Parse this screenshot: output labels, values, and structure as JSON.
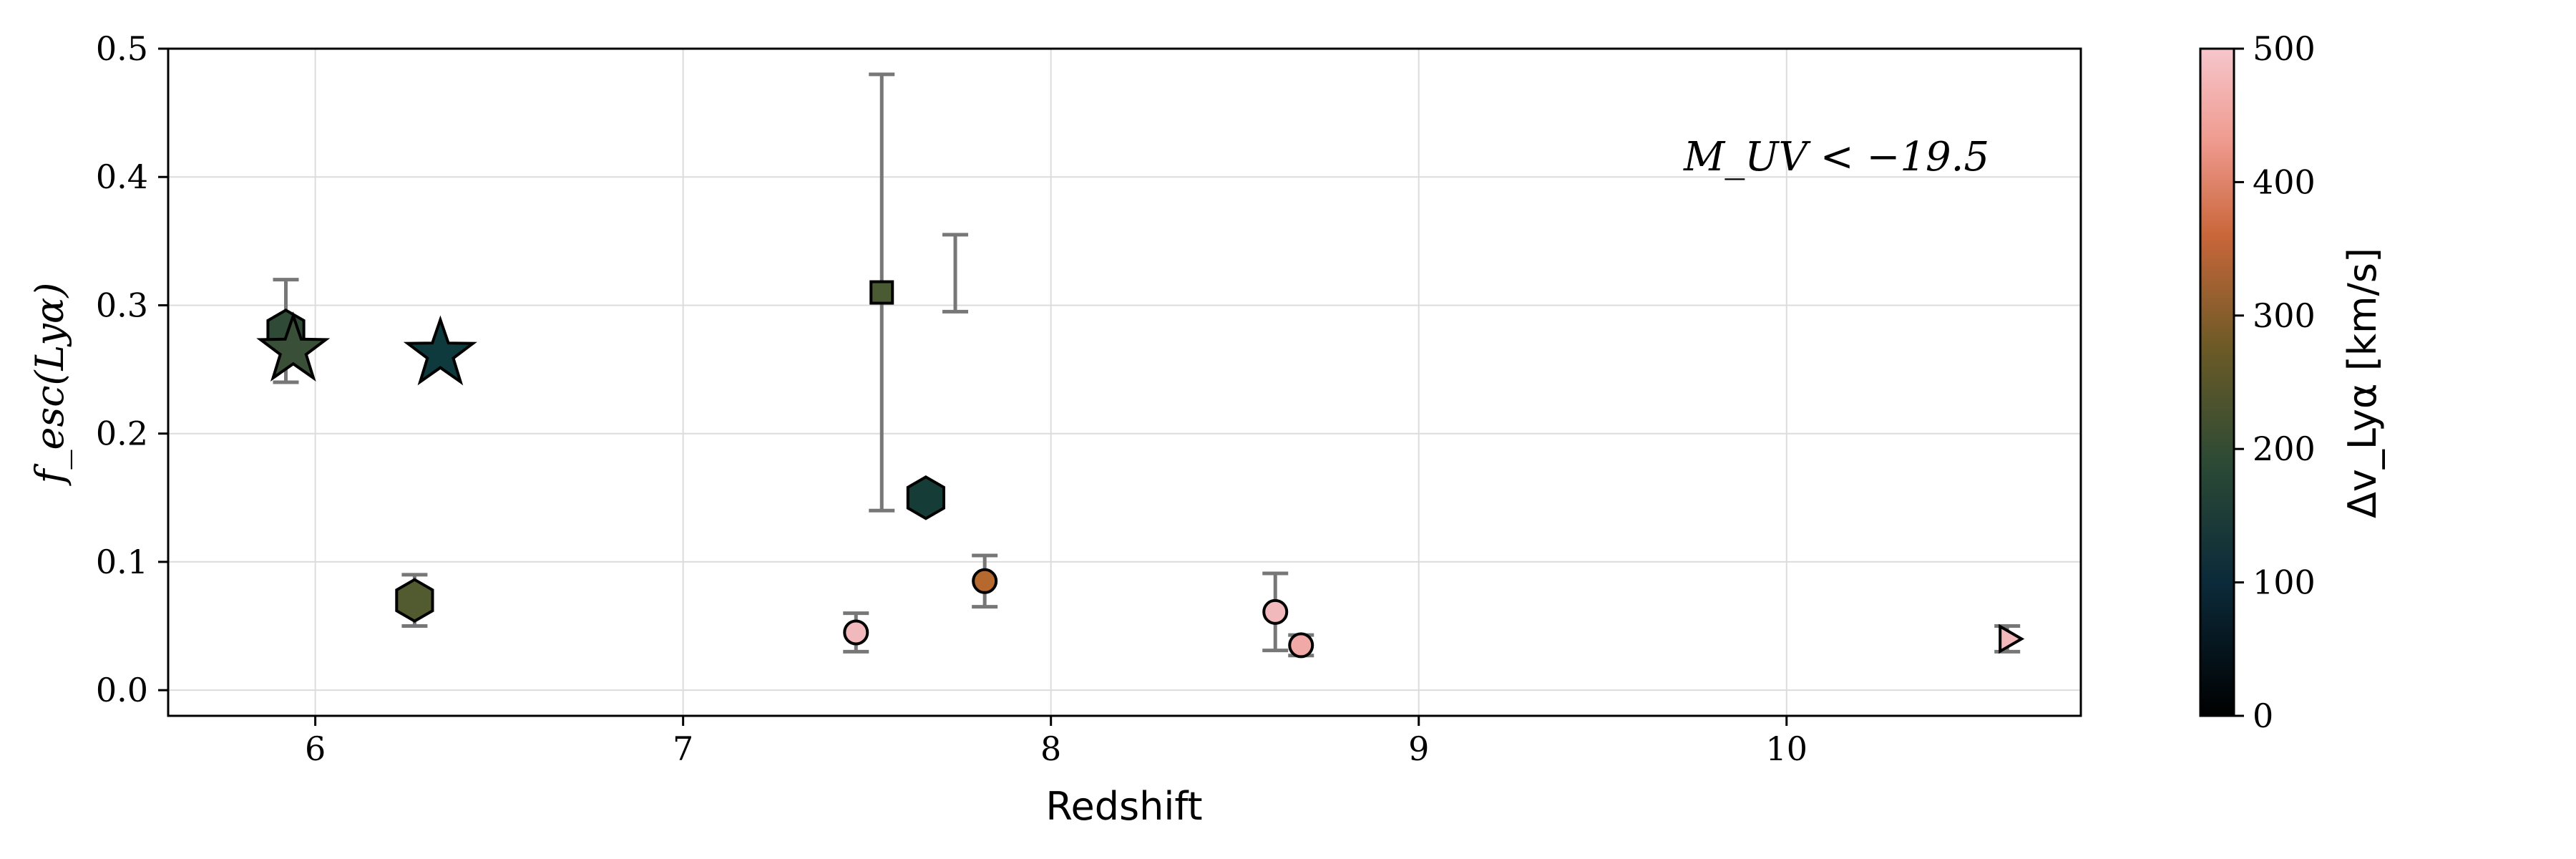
{
  "chart_data": {
    "type": "scatter",
    "xlabel": "Redshift",
    "ylabel": "f_esc(Lyα)",
    "xlim": [
      5.6,
      10.8
    ],
    "ylim": [
      -0.02,
      0.5
    ],
    "xticks": [
      "6",
      "7",
      "8",
      "9",
      "10"
    ],
    "yticks": [
      "0.0",
      "0.1",
      "0.2",
      "0.3",
      "0.4",
      "0.5"
    ],
    "grid": true,
    "annotation": "M_UV < −19.5",
    "colorbar": {
      "label": "Δv_Lyα [km/s]",
      "range": [
        0,
        500
      ],
      "ticks": [
        "0",
        "100",
        "200",
        "300",
        "400",
        "500"
      ]
    },
    "points": [
      {
        "x": 5.92,
        "y": 0.28,
        "err_low": 0.04,
        "err_high": 0.04,
        "marker": "hexagon",
        "dv": 180,
        "color": "#2f4a36"
      },
      {
        "x": 5.94,
        "y": 0.265,
        "err_low": 0.0,
        "err_high": 0.0,
        "marker": "star",
        "dv": 190,
        "color": "#3a4f37"
      },
      {
        "x": 6.27,
        "y": 0.07,
        "err_low": 0.02,
        "err_high": 0.02,
        "marker": "hexagon",
        "dv": 230,
        "color": "#525a2f"
      },
      {
        "x": 6.34,
        "y": 0.262,
        "err_low": 0.0,
        "err_high": 0.0,
        "marker": "star",
        "dv": 120,
        "color": "#0e3a3e"
      },
      {
        "x": 7.47,
        "y": 0.045,
        "err_low": 0.015,
        "err_high": 0.015,
        "marker": "circle",
        "dv": 480,
        "color": "#f2b9bd"
      },
      {
        "x": 7.54,
        "y": 0.31,
        "err_low": 0.17,
        "err_high": 0.17,
        "marker": "square",
        "dv": 220,
        "color": "#4a5a32"
      },
      {
        "x": 7.66,
        "y": 0.15,
        "err_low": 0.0,
        "err_high": 0.0,
        "marker": "hexagon",
        "dv": 140,
        "color": "#163c38"
      },
      {
        "x": 7.82,
        "y": 0.085,
        "err_low": 0.02,
        "err_high": 0.02,
        "marker": "circle",
        "dv": 320,
        "color": "#b5692e"
      },
      {
        "x": 8.61,
        "y": 0.061,
        "err_low": 0.03,
        "err_high": 0.03,
        "marker": "circle",
        "dv": 480,
        "color": "#f2b9bd"
      },
      {
        "x": 8.68,
        "y": 0.035,
        "err_low": 0.008,
        "err_high": 0.008,
        "marker": "circle",
        "dv": 450,
        "color": "#f0a9a6"
      },
      {
        "x": 10.6,
        "y": 0.04,
        "err_low": 0.01,
        "err_high": 0.01,
        "marker": "triangle-right",
        "dv": 490,
        "color": "#f2b9bd"
      }
    ],
    "errorbars_only": [
      {
        "x": 7.74,
        "y_low": 0.295,
        "y_high": 0.355
      }
    ]
  }
}
